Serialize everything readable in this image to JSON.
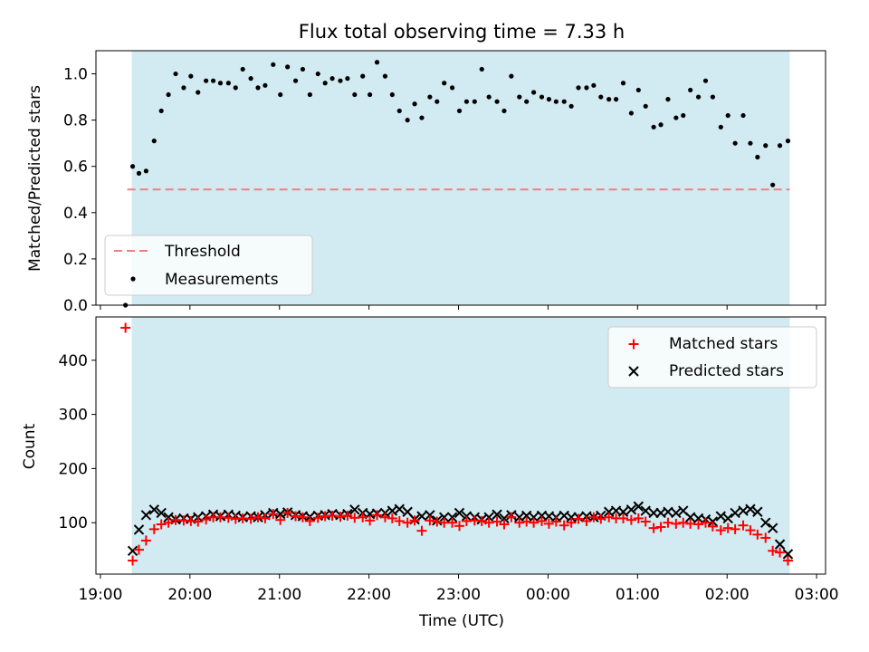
{
  "title": "Flux total observing time = 7.33 h",
  "colors": {
    "shade": "#add8e6",
    "threshold": "#f08080",
    "measurement": "#000000",
    "matched": "#ff0000",
    "predicted": "#000000"
  },
  "chart_data": [
    {
      "type": "scatter",
      "title": "Flux total observing time = 7.33 h",
      "ylabel": "Matched/Predicted stars",
      "ylim": [
        0,
        1.1
      ],
      "yticks": [
        0.0,
        0.2,
        0.4,
        0.6,
        0.8,
        1.0
      ],
      "ytick_labels": [
        "0.0",
        "0.2",
        "0.4",
        "0.6",
        "0.8",
        "1.0"
      ],
      "xlim_hours": [
        18.95,
        27.1
      ],
      "observing_window_hours": [
        19.35,
        26.7
      ],
      "threshold": 0.5,
      "legend": [
        "Threshold",
        "Measurements"
      ],
      "legend_position": "lower-left",
      "series": [
        {
          "name": "Threshold",
          "kind": "line",
          "x_hours": [
            19.3,
            26.7
          ],
          "y": [
            0.5,
            0.5
          ]
        },
        {
          "name": "Measurements",
          "kind": "points",
          "x_hours": [
            19.28,
            19.36,
            19.43,
            19.51,
            19.6,
            19.68,
            19.76,
            19.84,
            19.93,
            20.01,
            20.09,
            20.18,
            20.26,
            20.34,
            20.43,
            20.51,
            20.59,
            20.68,
            20.76,
            20.84,
            20.93,
            21.01,
            21.09,
            21.18,
            21.26,
            21.34,
            21.43,
            21.51,
            21.59,
            21.68,
            21.76,
            21.84,
            21.93,
            22.01,
            22.09,
            22.18,
            22.26,
            22.34,
            22.43,
            22.51,
            22.59,
            22.68,
            22.76,
            22.84,
            22.93,
            23.01,
            23.09,
            23.18,
            23.26,
            23.34,
            23.43,
            23.51,
            23.59,
            23.68,
            23.76,
            23.84,
            23.93,
            24.01,
            24.09,
            24.18,
            24.26,
            24.34,
            24.43,
            24.51,
            24.59,
            24.68,
            24.76,
            24.84,
            24.93,
            25.01,
            25.09,
            25.18,
            25.26,
            25.34,
            25.43,
            25.51,
            25.59,
            25.68,
            25.76,
            25.84,
            25.93,
            26.01,
            26.09,
            26.18,
            26.26,
            26.34,
            26.43,
            26.51,
            26.59,
            26.68
          ],
          "y": [
            0.0,
            0.6,
            0.57,
            0.58,
            0.71,
            0.84,
            0.91,
            1.0,
            0.94,
            0.99,
            0.92,
            0.97,
            0.97,
            0.96,
            0.96,
            0.94,
            1.02,
            0.98,
            0.94,
            0.95,
            1.04,
            0.91,
            1.03,
            0.97,
            1.02,
            0.91,
            1.0,
            0.96,
            0.98,
            0.97,
            0.98,
            0.91,
            0.99,
            0.91,
            1.05,
            0.99,
            0.91,
            0.84,
            0.8,
            0.87,
            0.81,
            0.9,
            0.88,
            0.96,
            0.94,
            0.84,
            0.88,
            0.88,
            1.02,
            0.9,
            0.88,
            0.84,
            0.99,
            0.9,
            0.88,
            0.92,
            0.9,
            0.89,
            0.88,
            0.88,
            0.86,
            0.94,
            0.94,
            0.95,
            0.9,
            0.89,
            0.89,
            0.96,
            0.83,
            0.93,
            0.86,
            0.77,
            0.78,
            0.89,
            0.81,
            0.82,
            0.93,
            0.9,
            0.97,
            0.9,
            0.77,
            0.82,
            0.7,
            0.82,
            0.7,
            0.64,
            0.69,
            0.52,
            0.69,
            0.71
          ]
        }
      ]
    },
    {
      "type": "scatter",
      "xlabel": "Time (UTC)",
      "ylabel": "Count",
      "ylim": [
        5,
        480
      ],
      "yticks": [
        100,
        200,
        300,
        400
      ],
      "ytick_labels": [
        "100",
        "200",
        "300",
        "400"
      ],
      "xticks_hours": [
        19,
        20,
        21,
        22,
        23,
        24,
        25,
        26,
        27
      ],
      "xtick_labels": [
        "19:00",
        "20:00",
        "21:00",
        "22:00",
        "23:00",
        "00:00",
        "01:00",
        "02:00",
        "03:00"
      ],
      "xlim_hours": [
        18.95,
        27.1
      ],
      "observing_window_hours": [
        19.35,
        26.7
      ],
      "legend": [
        "Matched stars",
        "Predicted stars"
      ],
      "legend_position": "upper-right",
      "series": [
        {
          "name": "Matched stars",
          "marker": "+",
          "x_hours": [
            19.28,
            19.36,
            19.43,
            19.51,
            19.6,
            19.68,
            19.76,
            19.84,
            19.93,
            20.01,
            20.09,
            20.18,
            20.26,
            20.34,
            20.43,
            20.51,
            20.59,
            20.68,
            20.76,
            20.84,
            20.93,
            21.01,
            21.09,
            21.18,
            21.26,
            21.34,
            21.43,
            21.51,
            21.59,
            21.68,
            21.76,
            21.84,
            21.93,
            22.01,
            22.09,
            22.18,
            22.26,
            22.34,
            22.43,
            22.51,
            22.59,
            22.68,
            22.76,
            22.84,
            22.93,
            23.01,
            23.09,
            23.18,
            23.26,
            23.34,
            23.43,
            23.51,
            23.59,
            23.68,
            23.76,
            23.84,
            23.93,
            24.01,
            24.09,
            24.18,
            24.26,
            24.34,
            24.43,
            24.51,
            24.59,
            24.68,
            24.76,
            24.84,
            24.93,
            25.01,
            25.09,
            25.18,
            25.26,
            25.34,
            25.43,
            25.51,
            25.59,
            25.68,
            25.76,
            25.84,
            25.93,
            26.01,
            26.09,
            26.18,
            26.26,
            26.34,
            26.43,
            26.51,
            26.59,
            26.68
          ],
          "values": [
            460,
            30,
            50,
            67,
            88,
            97,
            100,
            105,
            104,
            103,
            102,
            106,
            110,
            110,
            109,
            107,
            108,
            107,
            110,
            108,
            116,
            105,
            118,
            112,
            110,
            103,
            109,
            112,
            113,
            111,
            113,
            109,
            110,
            104,
            114,
            110,
            108,
            103,
            100,
            104,
            85,
            104,
            102,
            100,
            100,
            94,
            103,
            104,
            103,
            100,
            102,
            97,
            110,
            100,
            102,
            100,
            103,
            98,
            102,
            95,
            100,
            107,
            103,
            110,
            107,
            110,
            108,
            108,
            105,
            108,
            102,
            90,
            92,
            100,
            98,
            100,
            98,
            97,
            100,
            93,
            86,
            90,
            88,
            95,
            86,
            78,
            72,
            48,
            45,
            30
          ]
        },
        {
          "name": "Predicted stars",
          "marker": "x",
          "x_hours": [
            19.36,
            19.43,
            19.51,
            19.6,
            19.68,
            19.76,
            19.84,
            19.93,
            20.01,
            20.09,
            20.18,
            20.26,
            20.34,
            20.43,
            20.51,
            20.59,
            20.68,
            20.76,
            20.84,
            20.93,
            21.01,
            21.09,
            21.18,
            21.26,
            21.34,
            21.43,
            21.51,
            21.59,
            21.68,
            21.76,
            21.84,
            21.93,
            22.01,
            22.09,
            22.18,
            22.26,
            22.34,
            22.43,
            22.51,
            22.59,
            22.68,
            22.76,
            22.84,
            22.93,
            23.01,
            23.09,
            23.18,
            23.26,
            23.34,
            23.43,
            23.51,
            23.59,
            23.68,
            23.76,
            23.84,
            23.93,
            24.01,
            24.09,
            24.18,
            24.26,
            24.34,
            24.43,
            24.51,
            24.59,
            24.68,
            24.76,
            24.84,
            24.93,
            25.01,
            25.09,
            25.18,
            25.26,
            25.34,
            25.43,
            25.51,
            25.59,
            25.68,
            25.76,
            25.84,
            25.93,
            26.01,
            26.09,
            26.18,
            26.26,
            26.34,
            26.43,
            26.51,
            26.59,
            26.68
          ],
          "values": [
            48,
            87,
            114,
            124,
            118,
            110,
            106,
            108,
            107,
            110,
            112,
            115,
            112,
            115,
            113,
            110,
            112,
            110,
            114,
            118,
            116,
            119,
            114,
            112,
            111,
            113,
            114,
            116,
            114,
            116,
            124,
            118,
            116,
            117,
            118,
            122,
            125,
            120,
            106,
            112,
            114,
            104,
            110,
            110,
            118,
            112,
            110,
            106,
            110,
            115,
            108,
            114,
            110,
            113,
            110,
            113,
            112,
            110,
            113,
            110,
            110,
            112,
            110,
            113,
            120,
            122,
            120,
            124,
            130,
            122,
            118,
            118,
            120,
            118,
            122,
            110,
            108,
            106,
            102,
            112,
            108,
            118,
            122,
            125,
            120,
            100,
            90,
            60,
            42
          ]
        }
      ]
    }
  ]
}
